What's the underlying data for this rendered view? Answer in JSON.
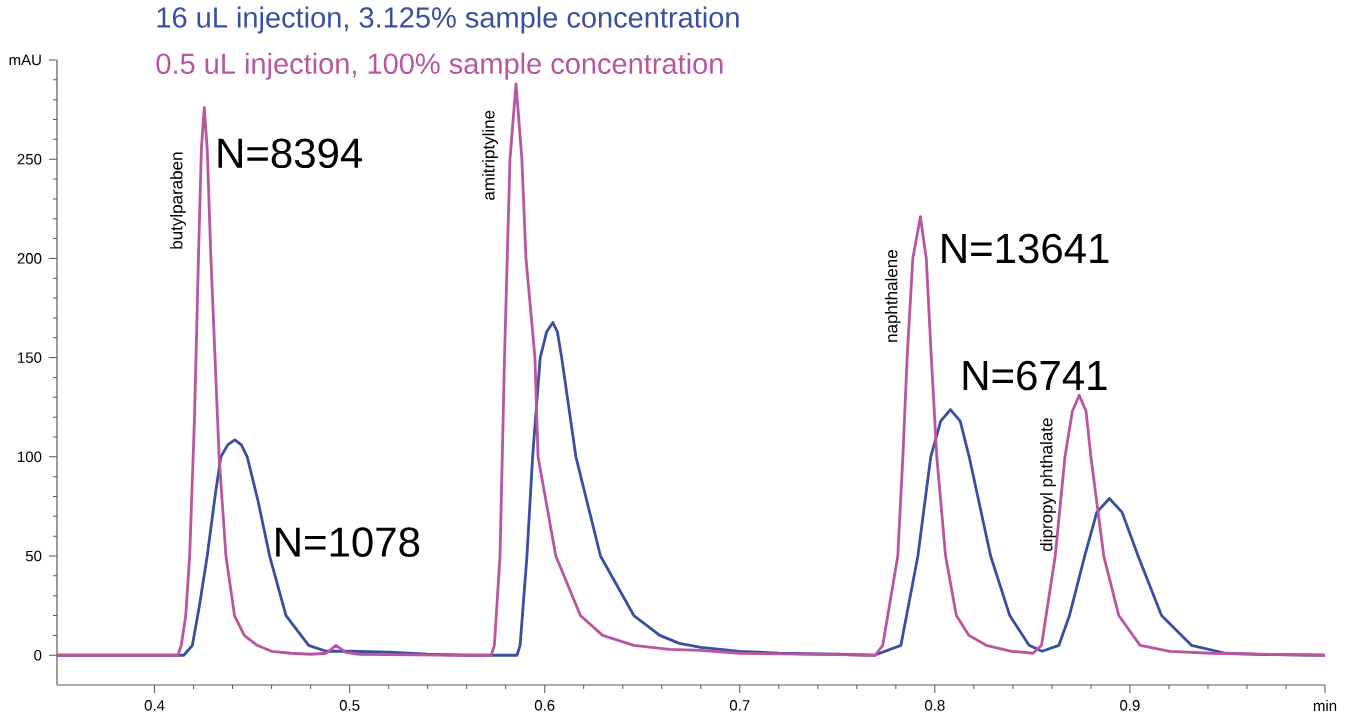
{
  "chart_data": {
    "type": "line",
    "xlim": [
      0.35,
      1.0
    ],
    "xticks": [
      0.4,
      0.5,
      0.6,
      0.7,
      0.8,
      0.9,
      {
        "value": 1.0,
        "label": "min"
      }
    ],
    "ylim": [
      -15,
      300
    ],
    "yticks": [
      0,
      50,
      100,
      150,
      200,
      250,
      {
        "value": 300,
        "label": "mAU"
      }
    ],
    "legend": "top left",
    "grid": false,
    "marker": "none",
    "line_style": "solid",
    "series": [
      {
        "name": "16 uL injection, 3.125% sample concentration",
        "color": "#3a4fa0",
        "x": [
          0.35,
          0.4,
          0.415,
          0.4194,
          0.423,
          0.427,
          0.431,
          0.434,
          0.4375,
          0.4411,
          0.4445,
          0.4475,
          0.453,
          0.459,
          0.4674,
          0.479,
          0.488,
          0.5,
          0.52,
          0.54,
          0.56,
          0.5858,
          0.5874,
          0.5909,
          0.5938,
          0.5977,
          0.601,
          0.6042,
          0.6065,
          0.6087,
          0.616,
          0.6286,
          0.6457,
          0.659,
          0.669,
          0.68,
          0.7,
          0.72,
          0.75,
          0.769,
          0.7826,
          0.7913,
          0.7979,
          0.803,
          0.808,
          0.813,
          0.8176,
          0.8286,
          0.8384,
          0.8483,
          0.855,
          0.8636,
          0.869,
          0.8768,
          0.883,
          0.8895,
          0.896,
          0.9042,
          0.9162,
          0.9315,
          0.949,
          0.97,
          1.0
        ],
        "values": [
          0,
          0,
          0,
          5,
          25,
          50,
          80,
          100,
          106,
          108.5,
          106,
          100,
          78,
          50,
          20,
          5,
          2,
          2,
          1.5,
          0.5,
          0,
          0,
          5,
          50,
          100,
          150,
          163,
          167.7,
          163,
          150,
          100,
          50,
          20,
          10,
          6,
          4,
          2,
          1,
          0.5,
          0,
          5,
          50,
          100,
          118,
          123.8,
          118,
          100,
          50,
          20,
          5,
          2,
          5,
          20,
          50,
          72,
          79,
          72,
          50,
          20,
          5,
          1,
          0.3,
          0
        ]
      },
      {
        "name": "0.5 uL injection, 100% sample concentration",
        "color": "#b8579f",
        "x": [
          0.35,
          0.4,
          0.412,
          0.4137,
          0.416,
          0.418,
          0.4205,
          0.4225,
          0.424,
          0.4255,
          0.427,
          0.4289,
          0.431,
          0.4331,
          0.4366,
          0.441,
          0.446,
          0.4526,
          0.46,
          0.47,
          0.48,
          0.488,
          0.493,
          0.498,
          0.505,
          0.52,
          0.56,
          0.5726,
          0.5742,
          0.5771,
          0.5794,
          0.5822,
          0.5853,
          0.5883,
          0.5904,
          0.595,
          0.5966,
          0.6057,
          0.6183,
          0.6297,
          0.6457,
          0.664,
          0.68,
          0.7,
          0.75,
          0.7694,
          0.7733,
          0.781,
          0.7836,
          0.7858,
          0.7887,
          0.7926,
          0.7956,
          0.7982,
          0.801,
          0.8055,
          0.811,
          0.8175,
          0.8263,
          0.8394,
          0.8503,
          0.8547,
          0.8617,
          0.8667,
          0.8705,
          0.874,
          0.8775,
          0.88,
          0.8866,
          0.8943,
          0.9052,
          0.9205,
          0.942,
          1.0
        ],
        "values": [
          0,
          0,
          0,
          5,
          20,
          50,
          120,
          200,
          255,
          276,
          255,
          200,
          150,
          100,
          50,
          20,
          10,
          5,
          2,
          1,
          0.5,
          1,
          5,
          1.5,
          0.5,
          0.3,
          0,
          0,
          5,
          50,
          150,
          250,
          288,
          250,
          200,
          150,
          100,
          50,
          20,
          10,
          5,
          3,
          2.5,
          1,
          0.3,
          0,
          5,
          50,
          100,
          150,
          200,
          221,
          200,
          150,
          100,
          50,
          20,
          10,
          5,
          2,
          1,
          5,
          50,
          100,
          123,
          131,
          123,
          100,
          50,
          20,
          5,
          2,
          1,
          0
        ]
      }
    ],
    "annotations": [
      "butylparaben",
      "amitriptyline",
      "naphthalene",
      "dipropyl phthalate",
      "N=8394",
      "N=1078",
      "N=13641",
      "N=6741"
    ]
  }
}
